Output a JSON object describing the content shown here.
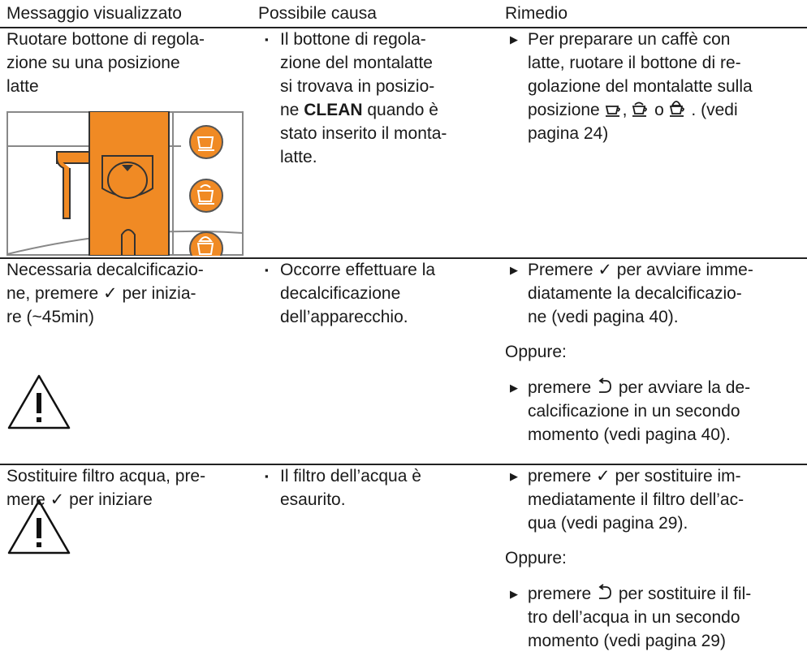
{
  "header": {
    "columns": [
      "Messaggio visualizzato",
      "Possibile causa",
      "Rimedio"
    ]
  },
  "rows": [
    {
      "message": [
        "Ruotare bottone di regola-",
        "zione su una posizione",
        "latte"
      ],
      "cause": [
        "Il bottone di regola-",
        "zione del montalatte",
        "si trovava in posizio-",
        [
          "ne ",
          "CLEAN",
          " quando è"
        ],
        "stato inserito il monta-",
        "latte."
      ],
      "remedy": [
        {
          "lines": [
            "Per preparare un caffè con",
            "latte, ruotare il bottone di re-",
            "golazione del montalatte sulla",
            [
              "posizione ",
              ", ",
              " o ",
              " . (vedi"
            ],
            "pagina 24)"
          ]
        }
      ]
    },
    {
      "message": [
        "Necessaria decalcificazio-",
        "ne, premere ✓ per inizia-",
        "re (~45min)"
      ],
      "cause": [
        "Occorre effettuare la",
        "decalcificazione",
        "dell’apparecchio."
      ],
      "remedy": [
        {
          "lines": [
            "Premere ✓ per avviare imme-",
            "diatamente la decalcificazio-",
            "ne (vedi pagina 40)."
          ]
        },
        {
          "text": "Oppure:"
        },
        {
          "lines": [
            [
              "premere ",
              " per avviare la de-"
            ],
            "calcificazione in un secondo",
            "momento (vedi pagina 40)."
          ]
        }
      ]
    },
    {
      "message": [
        "Sostituire filtro acqua, pre-",
        "mere ✓ per iniziare"
      ],
      "cause": [
        "Il filtro dell’acqua è",
        "esaurito."
      ],
      "remedy": [
        {
          "lines": [
            "premere ✓ per sostituire im-",
            "mediatamente il filtro dell’ac-",
            "qua (vedi pagina 29)."
          ]
        },
        {
          "text": "Oppure:"
        },
        {
          "lines": [
            [
              "premere ",
              " per sostituire il fil-"
            ],
            "tro dell’acqua in un secondo",
            "momento (vedi pagina 29)"
          ]
        }
      ]
    }
  ]
}
